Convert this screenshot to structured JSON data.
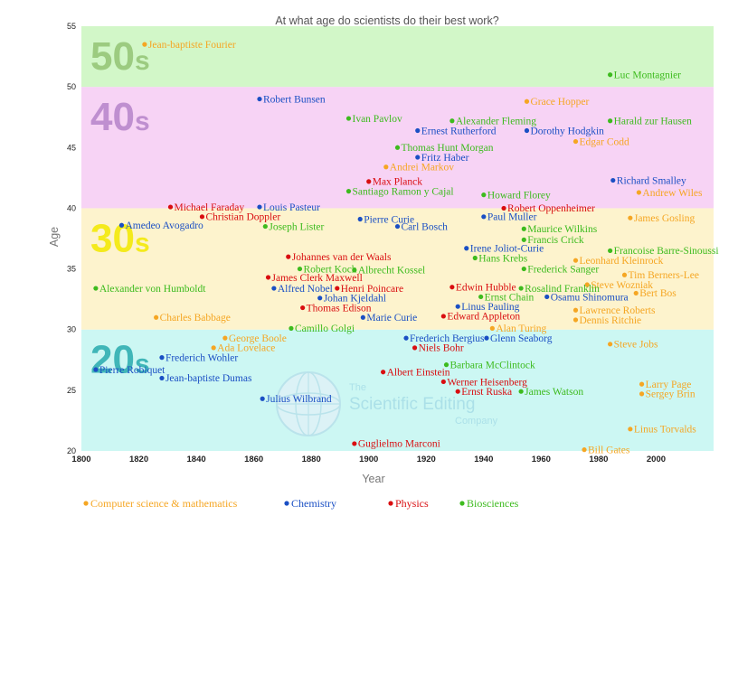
{
  "chart_data": {
    "type": "scatter",
    "title": "At what age do scientists do their best work?",
    "xlabel": "Year",
    "ylabel": "Age",
    "xlim": [
      1800,
      2020
    ],
    "ylim": [
      20,
      55
    ],
    "x_ticks": [
      1800,
      1820,
      1840,
      1860,
      1880,
      1900,
      1920,
      1940,
      1960,
      1980,
      2000
    ],
    "y_ticks": [
      20,
      25,
      30,
      35,
      40,
      45,
      50,
      55
    ],
    "grid": false,
    "legend_position": "bottom",
    "bands": [
      {
        "label": "20s",
        "from": 20,
        "to": 30,
        "band_color": "#ccf7f3",
        "text_color": "#40b6b8"
      },
      {
        "label": "30s",
        "from": 30,
        "to": 40,
        "band_color": "#fdf3cd",
        "text_color": "#f4ea1c"
      },
      {
        "label": "40s",
        "from": 40,
        "to": 50,
        "band_color": "#f7d3f5",
        "text_color": "#bf8fd0"
      },
      {
        "label": "50s",
        "from": 50,
        "to": 55,
        "band_color": "#d2f7c8",
        "text_color": "#9ccb80"
      }
    ],
    "categories": [
      {
        "key": "cs",
        "name": "Computer science & mathematics",
        "color": "#f5a623"
      },
      {
        "key": "chem",
        "name": "Chemistry",
        "color": "#1a4fc4"
      },
      {
        "key": "phys",
        "name": "Physics",
        "color": "#d90d10"
      },
      {
        "key": "bio",
        "name": "Biosciences",
        "color": "#3dbb1e"
      }
    ],
    "points": [
      {
        "name": "Jean-baptiste Fourier",
        "category": "cs",
        "x": 1822,
        "y": 53.5
      },
      {
        "name": "Luc Montagnier",
        "category": "bio",
        "x": 1984,
        "y": 51
      },
      {
        "name": "Robert Bunsen",
        "category": "chem",
        "x": 1862,
        "y": 49
      },
      {
        "name": "Grace Hopper",
        "category": "cs",
        "x": 1955,
        "y": 48.8
      },
      {
        "name": "Ivan Pavlov",
        "category": "bio",
        "x": 1893,
        "y": 47.4
      },
      {
        "name": "Alexander Fleming",
        "category": "bio",
        "x": 1929,
        "y": 47.2
      },
      {
        "name": "Harald zur Hausen",
        "category": "bio",
        "x": 1984,
        "y": 47.2
      },
      {
        "name": "Ernest Rutherford",
        "category": "chem",
        "x": 1917,
        "y": 46.4
      },
      {
        "name": "Dorothy Hodgkin",
        "category": "chem",
        "x": 1955,
        "y": 46.4
      },
      {
        "name": "Edgar Codd",
        "category": "cs",
        "x": 1972,
        "y": 45.5
      },
      {
        "name": "Thomas Hunt Morgan",
        "category": "bio",
        "x": 1910,
        "y": 45
      },
      {
        "name": "Fritz Haber",
        "category": "chem",
        "x": 1917,
        "y": 44.2
      },
      {
        "name": "Andrei Markov",
        "category": "cs",
        "x": 1906,
        "y": 43.4
      },
      {
        "name": "Max Planck",
        "category": "phys",
        "x": 1900,
        "y": 42.2
      },
      {
        "name": "Richard Smalley",
        "category": "chem",
        "x": 1985,
        "y": 42.3
      },
      {
        "name": "Santiago Ramon y Cajal",
        "category": "bio",
        "x": 1893,
        "y": 41.4
      },
      {
        "name": "Andrew Wiles",
        "category": "cs",
        "x": 1994,
        "y": 41.3
      },
      {
        "name": "Howard Florey",
        "category": "bio",
        "x": 1940,
        "y": 41.1
      },
      {
        "name": "Michael Faraday",
        "category": "phys",
        "x": 1831,
        "y": 40.1
      },
      {
        "name": "Louis Pasteur",
        "category": "chem",
        "x": 1862,
        "y": 40.1
      },
      {
        "name": "Robert Oppenheimer",
        "category": "phys",
        "x": 1947,
        "y": 40
      },
      {
        "name": "Christian Doppler",
        "category": "phys",
        "x": 1842,
        "y": 39.3
      },
      {
        "name": "Pierre Curie",
        "category": "chem",
        "x": 1897,
        "y": 39.1
      },
      {
        "name": "Paul Muller",
        "category": "chem",
        "x": 1940,
        "y": 39.3
      },
      {
        "name": "James Gosling",
        "category": "cs",
        "x": 1991,
        "y": 39.2
      },
      {
        "name": "Amedeo Avogadro",
        "category": "chem",
        "x": 1814,
        "y": 38.6
      },
      {
        "name": "Joseph Lister",
        "category": "bio",
        "x": 1864,
        "y": 38.5
      },
      {
        "name": "Carl Bosch",
        "category": "chem",
        "x": 1910,
        "y": 38.5
      },
      {
        "name": "Maurice Wilkins",
        "category": "bio",
        "x": 1954,
        "y": 38.3
      },
      {
        "name": "Francis Crick",
        "category": "bio",
        "x": 1954,
        "y": 37.4
      },
      {
        "name": "Irene Joliot-Curie",
        "category": "chem",
        "x": 1934,
        "y": 36.7
      },
      {
        "name": "Francoise Barre-Sinoussi",
        "category": "bio",
        "x": 1984,
        "y": 36.5
      },
      {
        "name": "Johannes van der Waals",
        "category": "phys",
        "x": 1872,
        "y": 36
      },
      {
        "name": "Hans Krebs",
        "category": "bio",
        "x": 1937,
        "y": 35.9
      },
      {
        "name": "Leonhard Kleinrock",
        "category": "cs",
        "x": 1972,
        "y": 35.7
      },
      {
        "name": "Robert Koch",
        "category": "bio",
        "x": 1876,
        "y": 35
      },
      {
        "name": "Albrecht Kossel",
        "category": "bio",
        "x": 1895,
        "y": 34.9
      },
      {
        "name": "Frederick Sanger",
        "category": "bio",
        "x": 1954,
        "y": 35
      },
      {
        "name": "Tim Berners-Lee",
        "category": "cs",
        "x": 1989,
        "y": 34.5
      },
      {
        "name": "James Clerk Maxwell",
        "category": "phys",
        "x": 1865,
        "y": 34.3
      },
      {
        "name": "Steve Wozniak",
        "category": "cs",
        "x": 1976,
        "y": 33.7
      },
      {
        "name": "Alexander von Humboldt",
        "category": "bio",
        "x": 1805,
        "y": 33.4
      },
      {
        "name": "Alfred Nobel",
        "category": "chem",
        "x": 1867,
        "y": 33.4
      },
      {
        "name": "Henri Poincare",
        "category": "phys",
        "x": 1889,
        "y": 33.4
      },
      {
        "name": "Edwin Hubble",
        "category": "phys",
        "x": 1929,
        "y": 33.5
      },
      {
        "name": "Rosalind Franklin",
        "category": "bio",
        "x": 1953,
        "y": 33.4
      },
      {
        "name": "Bert Bos",
        "category": "cs",
        "x": 1993,
        "y": 33
      },
      {
        "name": "Johan Kjeldahl",
        "category": "chem",
        "x": 1883,
        "y": 32.6
      },
      {
        "name": "Ernst Chain",
        "category": "bio",
        "x": 1939,
        "y": 32.7
      },
      {
        "name": "Osamu Shinomura",
        "category": "chem",
        "x": 1962,
        "y": 32.7
      },
      {
        "name": "Thomas Edison",
        "category": "phys",
        "x": 1877,
        "y": 31.8
      },
      {
        "name": "Linus Pauling",
        "category": "chem",
        "x": 1931,
        "y": 31.9
      },
      {
        "name": "Lawrence Roberts",
        "category": "cs",
        "x": 1972,
        "y": 31.6
      },
      {
        "name": "Charles Babbage",
        "category": "cs",
        "x": 1826,
        "y": 31
      },
      {
        "name": "Marie Curie",
        "category": "chem",
        "x": 1898,
        "y": 31
      },
      {
        "name": "Edward Appleton",
        "category": "phys",
        "x": 1926,
        "y": 31.1
      },
      {
        "name": "Dennis Ritchie",
        "category": "cs",
        "x": 1972,
        "y": 30.8
      },
      {
        "name": "Camillo Golgi",
        "category": "bio",
        "x": 1873,
        "y": 30.1
      },
      {
        "name": "Alan Turing",
        "category": "cs",
        "x": 1943,
        "y": 30.1
      },
      {
        "name": "George Boole",
        "category": "cs",
        "x": 1850,
        "y": 29.3
      },
      {
        "name": "Frederich Bergius",
        "category": "chem",
        "x": 1913,
        "y": 29.3
      },
      {
        "name": "Glenn Seaborg",
        "category": "chem",
        "x": 1941,
        "y": 29.3
      },
      {
        "name": "Steve Jobs",
        "category": "cs",
        "x": 1984,
        "y": 28.8
      },
      {
        "name": "Ada Lovelace",
        "category": "cs",
        "x": 1846,
        "y": 28.5
      },
      {
        "name": "Niels Bohr",
        "category": "phys",
        "x": 1916,
        "y": 28.5
      },
      {
        "name": "Frederich Wohler",
        "category": "chem",
        "x": 1828,
        "y": 27.7
      },
      {
        "name": "Barbara McClintock",
        "category": "bio",
        "x": 1927,
        "y": 27.1
      },
      {
        "name": "Pierre Robiquet",
        "category": "chem",
        "x": 1805,
        "y": 26.7
      },
      {
        "name": "Albert Einstein",
        "category": "phys",
        "x": 1905,
        "y": 26.5
      },
      {
        "name": "Jean-baptiste Dumas",
        "category": "chem",
        "x": 1828,
        "y": 26
      },
      {
        "name": "Werner Heisenberg",
        "category": "phys",
        "x": 1926,
        "y": 25.7
      },
      {
        "name": "Larry Page",
        "category": "cs",
        "x": 1995,
        "y": 25.5
      },
      {
        "name": "Ernst Ruska",
        "category": "phys",
        "x": 1931,
        "y": 24.9
      },
      {
        "name": "James Watson",
        "category": "bio",
        "x": 1953,
        "y": 24.9
      },
      {
        "name": "Sergey Brin",
        "category": "cs",
        "x": 1995,
        "y": 24.7
      },
      {
        "name": "Julius Wilbrand",
        "category": "chem",
        "x": 1863,
        "y": 24.3
      },
      {
        "name": "Linus Torvalds",
        "category": "cs",
        "x": 1991,
        "y": 21.8
      },
      {
        "name": "Guglielmo Marconi",
        "category": "phys",
        "x": 1895,
        "y": 20.6
      },
      {
        "name": "Bill Gates",
        "category": "cs",
        "x": 1975,
        "y": 20.1
      }
    ]
  },
  "watermark": {
    "line1": "The",
    "line2": "Scientific Editing",
    "line3": "Company"
  }
}
